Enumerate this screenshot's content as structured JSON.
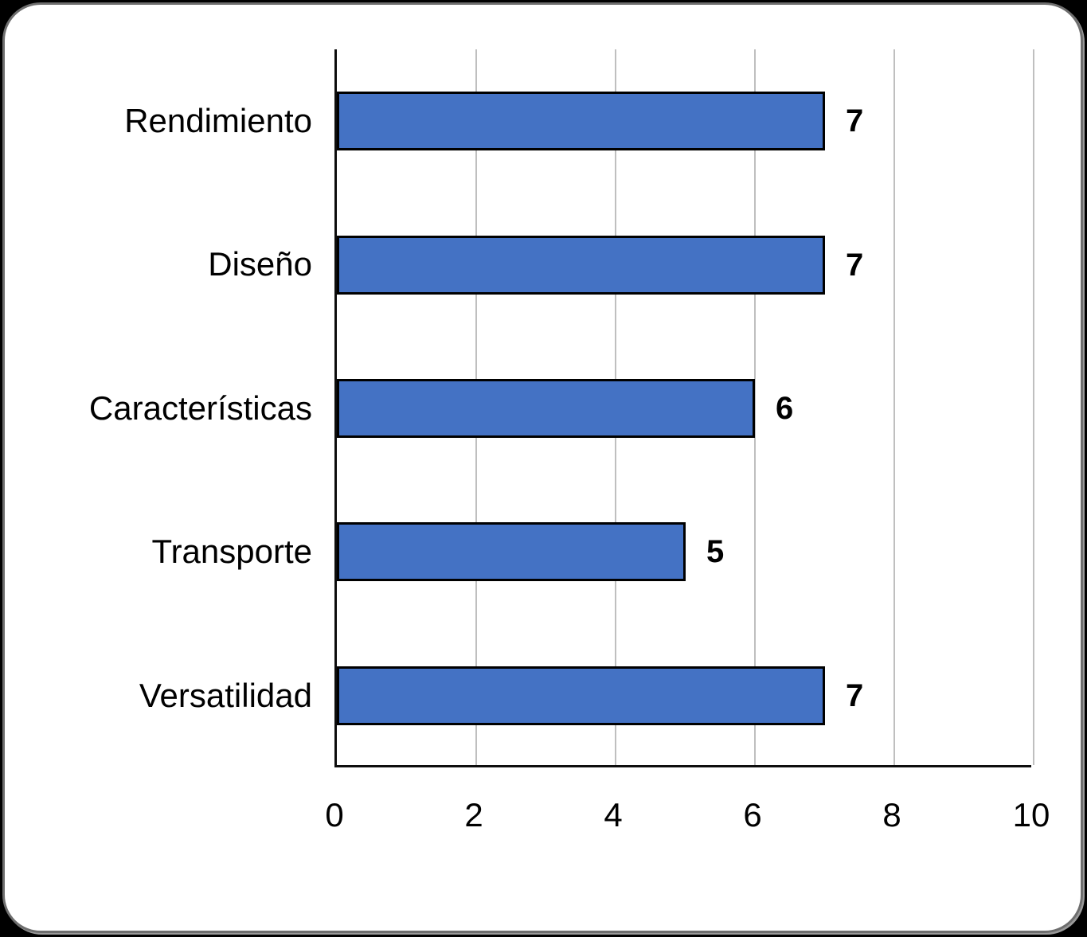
{
  "canvas": {
    "background_color": "#000000",
    "card_background_color": "#ffffff",
    "card_border_color": "#6e6e6e"
  },
  "chart_data": {
    "type": "bar",
    "orientation": "horizontal",
    "title": "",
    "xlabel": "",
    "ylabel": "",
    "categories": [
      "Rendimiento",
      "Diseño",
      "Características",
      "Transporte",
      "Versatilidad"
    ],
    "values": [
      7,
      7,
      6,
      5,
      7
    ],
    "data_labels": [
      "7",
      "7",
      "6",
      "5",
      "7"
    ],
    "xlim": [
      0,
      10
    ],
    "xticks": [
      0,
      2,
      4,
      6,
      8,
      10
    ],
    "xtick_labels": [
      "0",
      "2",
      "4",
      "6",
      "8",
      "10"
    ],
    "grid": "vertical gridlines on",
    "legend_position": "none",
    "bar_color": "#4472C4",
    "bar_border_color": "#000000",
    "gridline_color": "#bfbfbf",
    "axis_color": "#0d0d0d",
    "label_color": "#000000"
  }
}
